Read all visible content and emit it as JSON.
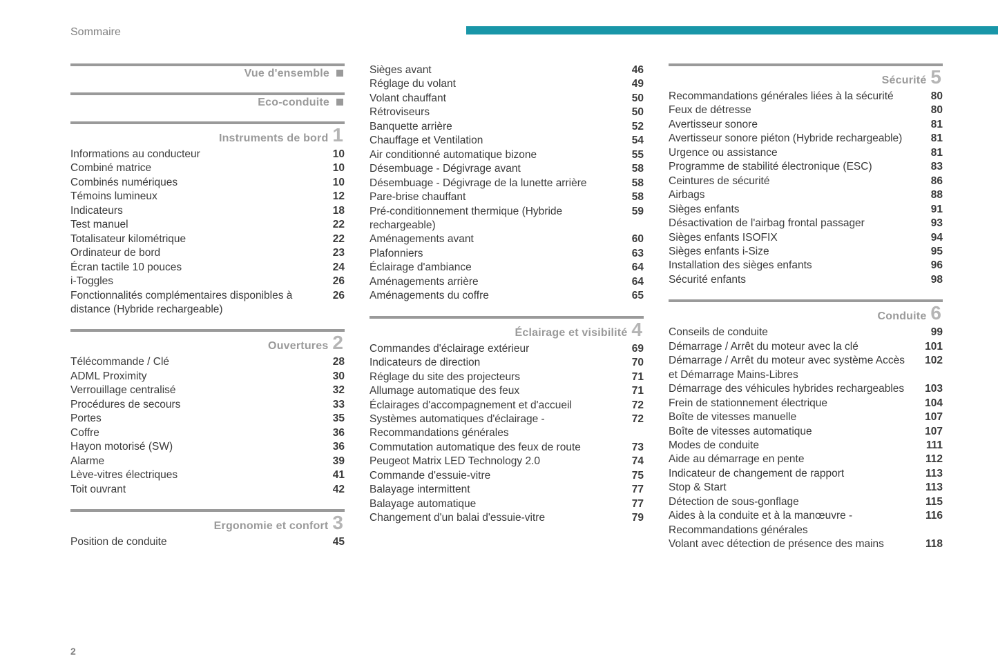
{
  "header": {
    "title": "Sommaire"
  },
  "page_number": "2",
  "layout": {
    "accent_color": "#1996a8",
    "rule_color": "#9a9a9a",
    "section_title_color": "#9a9a9a",
    "section_num_color": "#b5b5b5",
    "text_color": "#3a3a3a",
    "background": "#ffffff",
    "font_size_body": 15.5,
    "font_size_section_title": 16,
    "font_size_section_num": 28
  },
  "columns": [
    {
      "sections": [
        {
          "title": "Vue d'ensemble",
          "marker": "square",
          "entries": []
        },
        {
          "title": "Eco-conduite",
          "marker": "square",
          "entries": []
        },
        {
          "title": "Instruments de bord",
          "num": "1",
          "entries": [
            {
              "label": "Informations au conducteur",
              "page": "10"
            },
            {
              "label": "Combiné matrice",
              "page": "10"
            },
            {
              "label": "Combinés numériques",
              "page": "10"
            },
            {
              "label": "Témoins lumineux",
              "page": "12"
            },
            {
              "label": "Indicateurs",
              "page": "18"
            },
            {
              "label": "Test manuel",
              "page": "22"
            },
            {
              "label": "Totalisateur kilométrique",
              "page": "22"
            },
            {
              "label": "Ordinateur de bord",
              "page": "23"
            },
            {
              "label": "Écran tactile 10 pouces",
              "page": "24"
            },
            {
              "label": "i-Toggles",
              "page": "26"
            },
            {
              "label": "Fonctionnalités complémentaires disponibles à distance (Hybride rechargeable)",
              "page": "26"
            }
          ]
        },
        {
          "title": "Ouvertures",
          "num": "2",
          "entries": [
            {
              "label": "Télécommande / Clé",
              "page": "28"
            },
            {
              "label": "ADML Proximity",
              "page": "30"
            },
            {
              "label": "Verrouillage centralisé",
              "page": "32"
            },
            {
              "label": "Procédures de secours",
              "page": "33"
            },
            {
              "label": "Portes",
              "page": "35"
            },
            {
              "label": "Coffre",
              "page": "36"
            },
            {
              "label": "Hayon motorisé (SW)",
              "page": "36"
            },
            {
              "label": "Alarme",
              "page": "39"
            },
            {
              "label": "Lève-vitres électriques",
              "page": "41"
            },
            {
              "label": "Toit ouvrant",
              "page": "42"
            }
          ]
        },
        {
          "title": "Ergonomie et confort",
          "num": "3",
          "entries": [
            {
              "label": "Position de conduite",
              "page": "45"
            }
          ]
        }
      ]
    },
    {
      "sections": [
        {
          "continuation": true,
          "entries": [
            {
              "label": "Sièges avant",
              "page": "46"
            },
            {
              "label": "Réglage du volant",
              "page": "49"
            },
            {
              "label": "Volant chauffant",
              "page": "50"
            },
            {
              "label": "Rétroviseurs",
              "page": "50"
            },
            {
              "label": "Banquette arrière",
              "page": "52"
            },
            {
              "label": "Chauffage et Ventilation",
              "page": "54"
            },
            {
              "label": "Air conditionné automatique bizone",
              "page": "55"
            },
            {
              "label": "Désembuage - Dégivrage avant",
              "page": "58"
            },
            {
              "label": "Désembuage - Dégivrage de la lunette arrière",
              "page": "58"
            },
            {
              "label": "Pare-brise chauffant",
              "page": "58"
            },
            {
              "label": "Pré-conditionnement thermique (Hybride rechargeable)",
              "page": "59"
            },
            {
              "label": "Aménagements avant",
              "page": "60"
            },
            {
              "label": "Plafonniers",
              "page": "63"
            },
            {
              "label": "Éclairage d'ambiance",
              "page": "64"
            },
            {
              "label": "Aménagements arrière",
              "page": "64"
            },
            {
              "label": "Aménagements du coffre",
              "page": "65"
            }
          ]
        },
        {
          "title": "Éclairage et visibilité",
          "num": "4",
          "entries": [
            {
              "label": "Commandes d'éclairage extérieur",
              "page": "69"
            },
            {
              "label": "Indicateurs de direction",
              "page": "70"
            },
            {
              "label": "Réglage du site des projecteurs",
              "page": "71"
            },
            {
              "label": "Allumage automatique des feux",
              "page": "71"
            },
            {
              "label": "Éclairages d'accompagnement et d'accueil",
              "page": "72"
            },
            {
              "label": "Systèmes automatiques d'éclairage - Recommandations générales",
              "page": "72"
            },
            {
              "label": "Commutation automatique des feux de route",
              "page": "73"
            },
            {
              "label": "Peugeot Matrix LED Technology 2.0",
              "page": "74"
            },
            {
              "label": "Commande d'essuie-vitre",
              "page": "75"
            },
            {
              "label": "Balayage intermittent",
              "page": "77"
            },
            {
              "label": "Balayage automatique",
              "page": "77"
            },
            {
              "label": "Changement d'un balai d'essuie-vitre",
              "page": "79"
            }
          ]
        }
      ]
    },
    {
      "sections": [
        {
          "title": "Sécurité",
          "num": "5",
          "first": true,
          "entries": [
            {
              "label": "Recommandations générales liées à la sécurité",
              "page": "80"
            },
            {
              "label": "Feux de détresse",
              "page": "80"
            },
            {
              "label": "Avertisseur sonore",
              "page": "81"
            },
            {
              "label": "Avertisseur sonore piéton (Hybride rechargeable)",
              "page": "81"
            },
            {
              "label": "Urgence ou assistance",
              "page": "81"
            },
            {
              "label": "Programme de stabilité électronique (ESC)",
              "page": "83"
            },
            {
              "label": "Ceintures de sécurité",
              "page": "86"
            },
            {
              "label": "Airbags",
              "page": "88"
            },
            {
              "label": "Sièges enfants",
              "page": "91"
            },
            {
              "label": "Désactivation de l'airbag frontal passager",
              "page": "93"
            },
            {
              "label": "Sièges enfants ISOFIX",
              "page": "94"
            },
            {
              "label": "Sièges enfants i-Size",
              "page": "95"
            },
            {
              "label": "Installation des sièges enfants",
              "page": "96"
            },
            {
              "label": "Sécurité enfants",
              "page": "98"
            }
          ]
        },
        {
          "title": "Conduite",
          "num": "6",
          "entries": [
            {
              "label": "Conseils de conduite",
              "page": "99"
            },
            {
              "label": "Démarrage / Arrêt du moteur avec la clé",
              "page": "101"
            },
            {
              "label": "Démarrage / Arrêt du moteur avec système Accès et Démarrage Mains-Libres",
              "page": "102"
            },
            {
              "label": "Démarrage des véhicules hybrides rechargeables",
              "page": "103"
            },
            {
              "label": "Frein de stationnement électrique",
              "page": "104"
            },
            {
              "label": "Boîte de vitesses manuelle",
              "page": "107"
            },
            {
              "label": "Boîte de vitesses automatique",
              "page": "107"
            },
            {
              "label": "Modes de conduite",
              "page": "111"
            },
            {
              "label": "Aide au démarrage en pente",
              "page": "112"
            },
            {
              "label": "Indicateur de changement de rapport",
              "page": "113"
            },
            {
              "label": "Stop & Start",
              "page": "113"
            },
            {
              "label": "Détection de sous-gonflage",
              "page": "115"
            },
            {
              "label": "Aides à la conduite et à la manœuvre - Recommandations générales",
              "page": "116"
            },
            {
              "label": "Volant avec détection de présence des mains",
              "page": "118"
            }
          ]
        }
      ]
    }
  ]
}
